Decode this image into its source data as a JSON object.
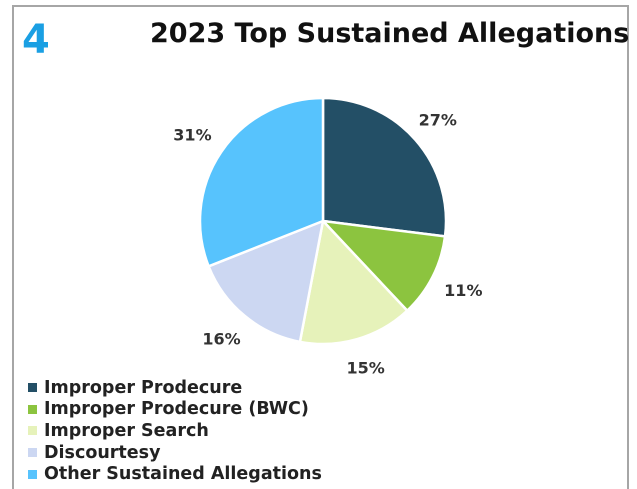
{
  "panel_number": "4",
  "chart_data": {
    "type": "pie",
    "title": "2023 Top Sustained Allegations",
    "slices": [
      {
        "label": "Improper Prodecure",
        "value": 27,
        "value_label": "27%",
        "color": "#234f66"
      },
      {
        "label": "Improper Prodecure (BWC)",
        "value": 11,
        "value_label": "11%",
        "color": "#8cc43f"
      },
      {
        "label": "Improper Search",
        "value": 15,
        "value_label": "15%",
        "color": "#e6f2ba"
      },
      {
        "label": "Discourtesy",
        "value": 16,
        "value_label": "16%",
        "color": "#ccd7f2"
      },
      {
        "label": "Other Sustained Allegations",
        "value": 31,
        "value_label": "31%",
        "color": "#57c3fd"
      }
    ],
    "legend_position": "bottom-left",
    "start_angle": "12 o'clock",
    "direction": "clockwise"
  }
}
